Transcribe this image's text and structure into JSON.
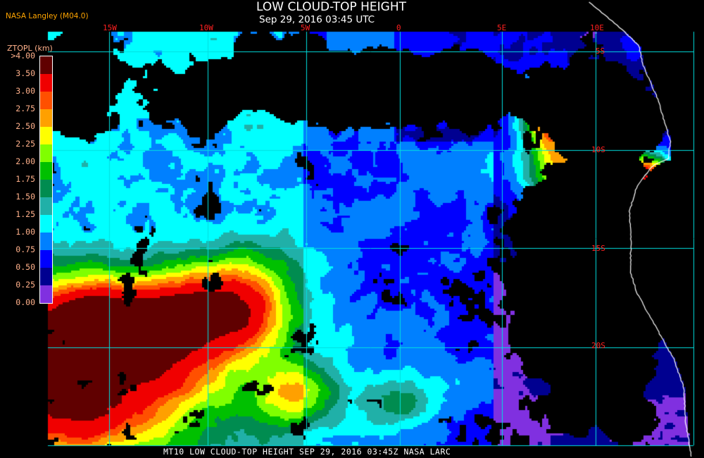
{
  "header": {
    "title": "LOW CLOUD-TOP HEIGHT",
    "subtitle": "Sep 29, 2016 03:45 UTC",
    "credit": "NASA Langley (M04.0)"
  },
  "legend": {
    "unit_label": "ZTOPL (km)",
    "labels": [
      ">4.00",
      "3.50",
      "3.00",
      "2.75",
      "2.50",
      "2.25",
      "2.00",
      "1.75",
      "1.50",
      "1.25",
      "1.00",
      "0.75",
      "0.50",
      "0.25",
      "0.00"
    ],
    "colors": [
      "#600000",
      "#f00000",
      "#ff5000",
      "#ffa000",
      "#ffff00",
      "#80ff00",
      "#00c000",
      "#008c50",
      "#20b0a8",
      "#00ffff",
      "#0080ff",
      "#0000ff",
      "#000090",
      "#8030e0"
    ]
  },
  "map": {
    "longitude_labels": [
      "15W",
      "10W",
      "5W",
      "0",
      "5E",
      "10E"
    ],
    "latitude_labels": [
      "5S",
      "10S",
      "15S",
      "20S"
    ],
    "grid_color": "#00e0e0",
    "coastline_color": "#ffffff",
    "clear_sky_color": "#000000"
  },
  "footer": {
    "text": "MT10  LOW CLOUD-TOP HEIGHT   SEP 29, 2016 03:45Z   NASA LARC"
  }
}
